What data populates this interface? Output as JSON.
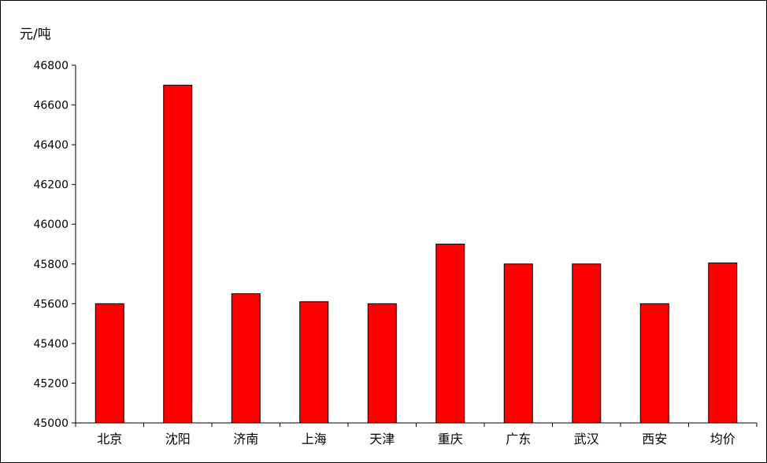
{
  "chart_data": {
    "type": "bar",
    "title": "",
    "xlabel": "",
    "ylabel": "元/吨",
    "ylim": [
      45000,
      46800
    ],
    "yticks": [
      45000,
      45200,
      45400,
      45600,
      45800,
      46000,
      46200,
      46400,
      46600,
      46800
    ],
    "categories": [
      "北京",
      "沈阳",
      "济南",
      "上海",
      "天津",
      "重庆",
      "广东",
      "武汉",
      "西安",
      "均价"
    ],
    "values": [
      45600,
      46700,
      45650,
      45610,
      45600,
      45900,
      45800,
      45800,
      45600,
      45805
    ],
    "grid": false,
    "legend": "none",
    "bar_color": "#ff0000",
    "bar_edge_color": "#000000"
  }
}
